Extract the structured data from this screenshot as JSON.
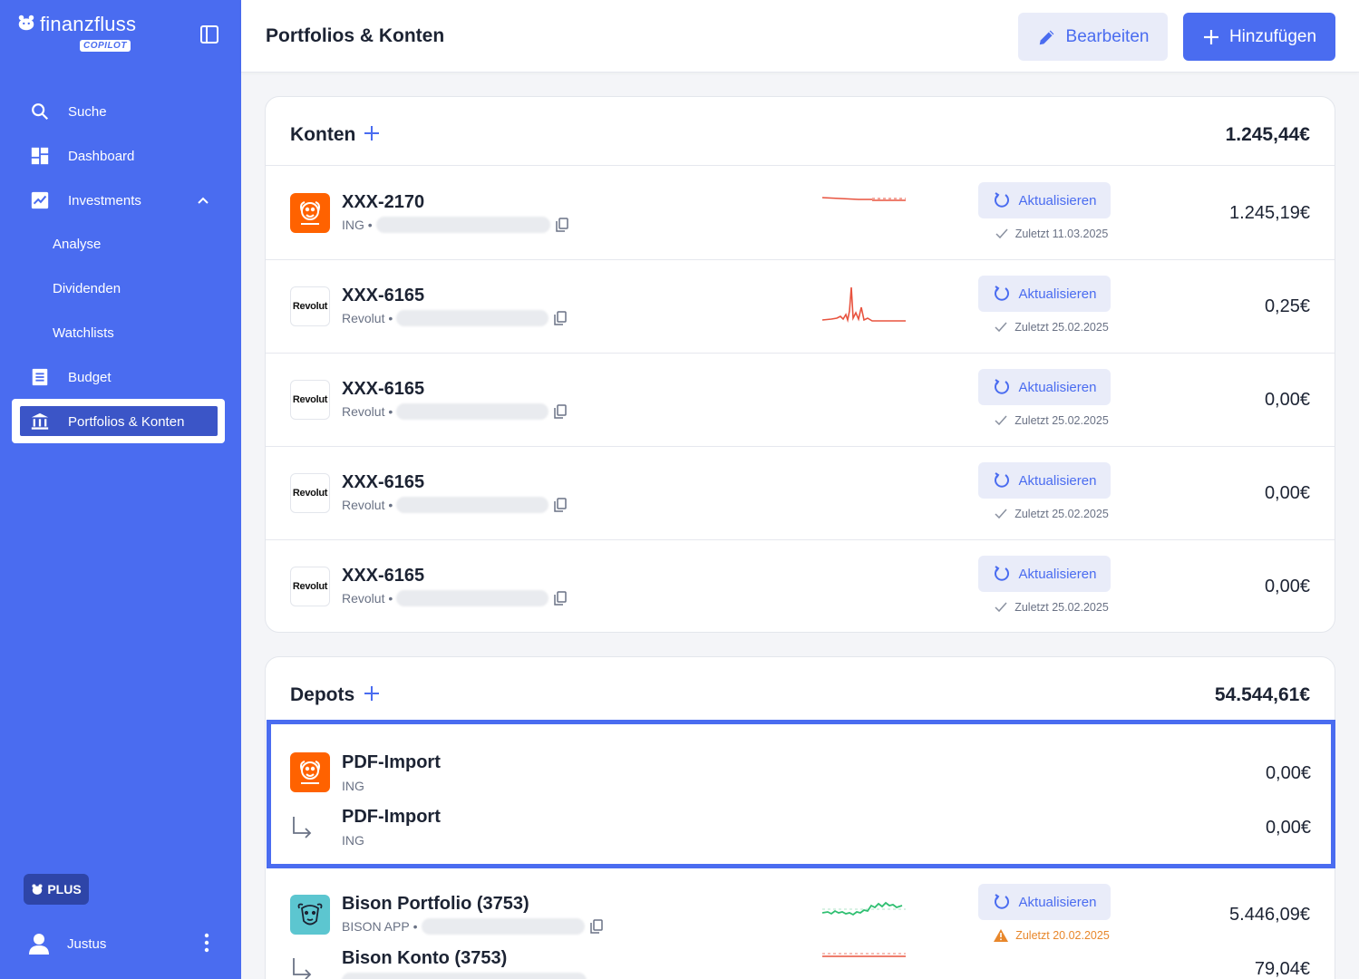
{
  "app": {
    "brand": "finanzfluss",
    "brand_badge": "COPILOT"
  },
  "sidebar": {
    "items": [
      {
        "label": "Suche",
        "icon": "search-icon"
      },
      {
        "label": "Dashboard",
        "icon": "dashboard-icon"
      },
      {
        "label": "Investments",
        "icon": "chart-line-icon",
        "expanded": true
      },
      {
        "label": "Analyse"
      },
      {
        "label": "Dividenden"
      },
      {
        "label": "Watchlists"
      },
      {
        "label": "Budget",
        "icon": "list-icon"
      },
      {
        "label": "Portfolios & Konten",
        "icon": "bank-icon",
        "active": true
      }
    ],
    "plan_badge": "PLUS",
    "user_name": "Justus"
  },
  "header": {
    "title": "Portfolios & Konten",
    "edit_label": "Bearbeiten",
    "add_label": "Hinzufügen"
  },
  "konten": {
    "title": "Konten",
    "total": "1.245,44€",
    "refresh_label": "Aktualisieren",
    "rows": [
      {
        "name": "XXX-2170",
        "bank": "ING",
        "logo": "ING",
        "amount": "1.245,19€",
        "sync": "Zuletzt 11.03.2025",
        "spark_color": "#e8533f"
      },
      {
        "name": "XXX-6165",
        "bank": "Revolut",
        "logo": "Revolut",
        "amount": "0,25€",
        "sync": "Zuletzt 25.02.2025",
        "spark_color": "#e8533f"
      },
      {
        "name": "XXX-6165",
        "bank": "Revolut",
        "logo": "Revolut",
        "amount": "0,00€",
        "sync": "Zuletzt 25.02.2025"
      },
      {
        "name": "XXX-6165",
        "bank": "Revolut",
        "logo": "Revolut",
        "amount": "0,00€",
        "sync": "Zuletzt 25.02.2025"
      },
      {
        "name": "XXX-6165",
        "bank": "Revolut",
        "logo": "Revolut",
        "amount": "0,00€",
        "sync": "Zuletzt 25.02.2025"
      }
    ]
  },
  "depots": {
    "title": "Depots",
    "total": "54.544,61€",
    "pdf_group": {
      "main_name": "PDF-Import",
      "main_bank": "ING",
      "main_amount": "0,00€",
      "sub_name": "PDF-Import",
      "sub_bank": "ING",
      "sub_amount": "0,00€"
    },
    "bison_group": {
      "main_name": "Bison Portfolio (3753)",
      "main_bank": "BISON APP",
      "main_amount": "5.446,09€",
      "sub_name": "Bison Konto (3753)",
      "sub_amount": "79,04€",
      "sync": "Zuletzt 20.02.2025",
      "sync_state": "warning",
      "spark_color": "#2fbf71",
      "sub_spark_color": "#e8533f"
    }
  },
  "colors": {
    "accent": "#4a6cf0",
    "sidebar": "#4a6cf0",
    "warning": "#e8872b",
    "positive": "#2fbf71",
    "negative": "#e8533f"
  }
}
